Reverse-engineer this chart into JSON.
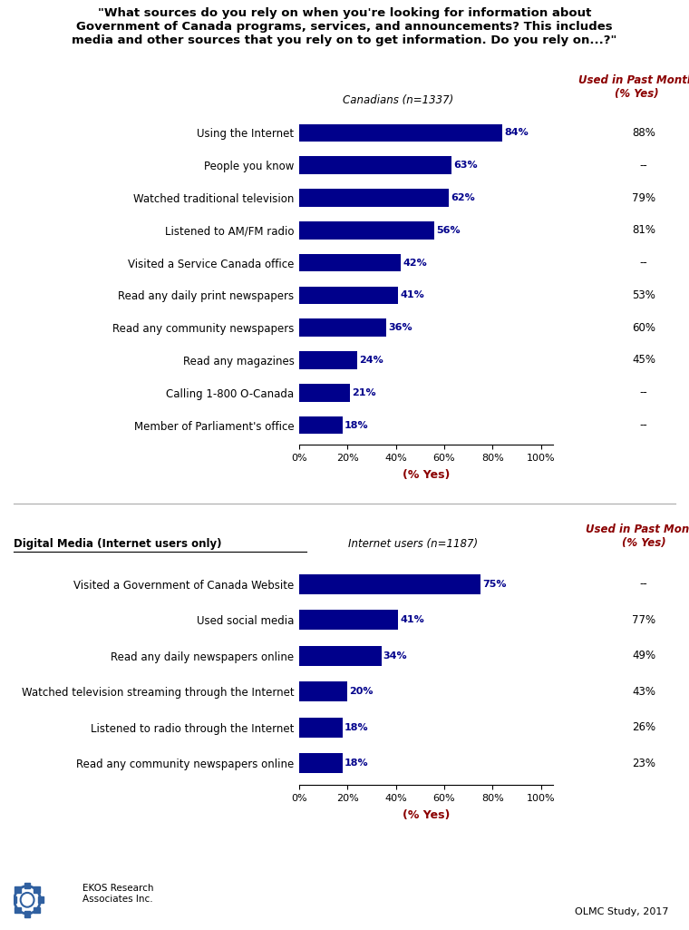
{
  "title_line1": "\"What sources do you rely on when you're looking for information about",
  "title_line2": "Government of Canada programs, services, and announcements? This includes",
  "title_line3": "media and other sources that you rely on to get information. Do you rely on...?\"",
  "chart1": {
    "subtitle": "Canadians (n=1337)",
    "categories": [
      "Using the Internet",
      "People you know",
      "Watched traditional television",
      "Listened to AM/FM radio",
      "Visited a Service Canada office",
      "Read any daily print newspapers",
      "Read any community newspapers",
      "Read any magazines",
      "Calling 1-800 O-Canada",
      "Member of Parliament's office"
    ],
    "values": [
      84,
      63,
      62,
      56,
      42,
      41,
      36,
      24,
      21,
      18
    ],
    "past_month": [
      "88%",
      "--",
      "79%",
      "81%",
      "--",
      "53%",
      "60%",
      "45%",
      "--",
      "--"
    ]
  },
  "chart2": {
    "subtitle": "Internet users (n=1187)",
    "section_label": "Digital Media (Internet users only)",
    "categories": [
      "Visited a Government of Canada Website",
      "Used social media",
      "Read any daily newspapers online",
      "Watched television streaming through the Internet",
      "Listened to radio through the Internet",
      "Read any community newspapers online"
    ],
    "values": [
      75,
      41,
      34,
      20,
      18,
      18
    ],
    "past_month": [
      "--",
      "77%",
      "49%",
      "43%",
      "26%",
      "23%"
    ]
  },
  "xlabel": "(% Yes)",
  "past_month_label": "Used in Past Month\n(% Yes)",
  "footer_left": "EKOS Research\nAssociates Inc.",
  "footer_right": "OLMC Study, 2017",
  "bar_color": "#00008B",
  "past_month_color": "#8B0000",
  "text_color": "#000000",
  "bg_color": "#FFFFFF"
}
